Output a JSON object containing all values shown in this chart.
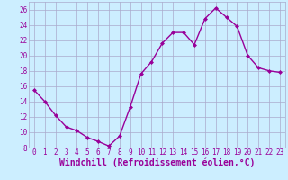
{
  "x": [
    0,
    1,
    2,
    3,
    4,
    5,
    6,
    7,
    8,
    9,
    10,
    11,
    12,
    13,
    14,
    15,
    16,
    17,
    18,
    19,
    20,
    21,
    22,
    23
  ],
  "y": [
    15.5,
    14.0,
    12.2,
    10.7,
    10.2,
    9.3,
    8.8,
    8.2,
    9.5,
    13.3,
    17.6,
    19.2,
    21.6,
    23.0,
    23.0,
    21.4,
    24.8,
    26.2,
    25.0,
    23.8,
    20.0,
    18.4,
    18.0,
    17.8
  ],
  "line_color": "#990099",
  "marker": "D",
  "marker_size": 2.0,
  "bg_color": "#cceeff",
  "grid_color": "#aaaacc",
  "xlabel": "Windchill (Refroidissement éolien,°C)",
  "xlabel_fontsize": 7,
  "ylim": [
    8,
    27
  ],
  "xlim": [
    -0.5,
    23.5
  ],
  "yticks": [
    8,
    10,
    12,
    14,
    16,
    18,
    20,
    22,
    24,
    26
  ],
  "xticks": [
    0,
    1,
    2,
    3,
    4,
    5,
    6,
    7,
    8,
    9,
    10,
    11,
    12,
    13,
    14,
    15,
    16,
    17,
    18,
    19,
    20,
    21,
    22,
    23
  ],
  "tick_fontsize": 5.5,
  "line_width": 1.0
}
